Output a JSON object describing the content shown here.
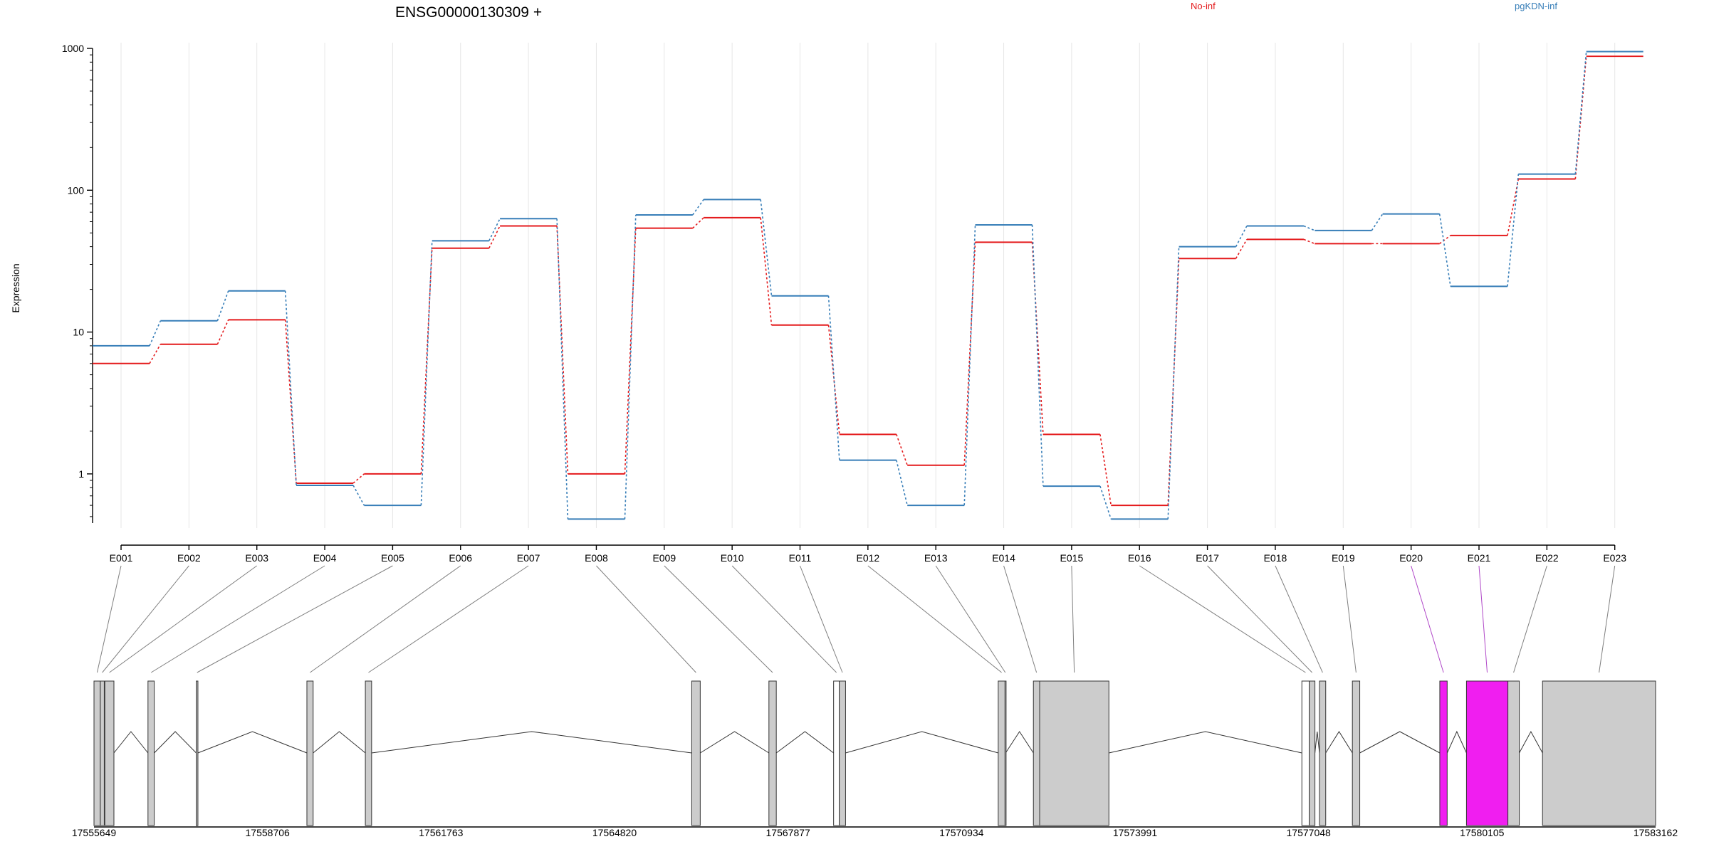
{
  "header": {
    "gene_title": "ENSG00000130309 +",
    "ylabel": "Expression"
  },
  "legend": [
    {
      "label": "No-inf",
      "color": "#e41a1c"
    },
    {
      "label": "pgKDN-inf",
      "color": "#377eb8"
    }
  ],
  "colors": {
    "exon_fill": "#cccccc",
    "exon_highlight": "#f01ef0",
    "connector": "#7f7f7f",
    "connector_highlight": "#b048c8",
    "grid": "#e6e6e6"
  },
  "chart_data": {
    "type": "line",
    "title": "ENSG00000130309 +",
    "ylabel": "Expression",
    "yscale": "log",
    "ylim": [
      0.45,
      1000
    ],
    "yticks": [
      1,
      10,
      100,
      1000
    ],
    "ytick_labels": [
      "1",
      "10",
      "100",
      "1000"
    ],
    "categories": [
      "E001",
      "E002",
      "E003",
      "E004",
      "E005",
      "E006",
      "E007",
      "E008",
      "E009",
      "E010",
      "E011",
      "E012",
      "E013",
      "E014",
      "E015",
      "E016",
      "E017",
      "E018",
      "E019",
      "E020",
      "E021",
      "E022",
      "E023"
    ],
    "series": [
      {
        "name": "No-inf",
        "color": "#e41a1c",
        "values": [
          6.0,
          8.2,
          12.2,
          0.86,
          1.0,
          39,
          56,
          1.0,
          54,
          64,
          11.2,
          1.9,
          1.15,
          43,
          1.9,
          0.6,
          33,
          45,
          42,
          42,
          48,
          120,
          880
        ]
      },
      {
        "name": "pgKDN-inf",
        "color": "#377eb8",
        "values": [
          8.0,
          12.0,
          19.5,
          0.83,
          0.6,
          44,
          63,
          0.48,
          67,
          86,
          18,
          1.25,
          0.6,
          57,
          0.82,
          0.48,
          40,
          56,
          52,
          68,
          21,
          130,
          950
        ]
      }
    ],
    "gene_model": {
      "coordinates": [
        "17555649",
        "17558706",
        "17561763",
        "17564820",
        "17567877",
        "17570934",
        "17573991",
        "17577048",
        "17580105",
        "17583162"
      ],
      "xlim": [
        17555649,
        17583162
      ],
      "exons": [
        {
          "id": "E001",
          "start": 17555649,
          "end": 17555760,
          "highlight": false,
          "boxed": true
        },
        {
          "id": "E002",
          "start": 17555760,
          "end": 17555830,
          "highlight": false,
          "boxed": true
        },
        {
          "id": "E003",
          "start": 17555840,
          "end": 17556000,
          "highlight": false,
          "boxed": true
        },
        {
          "id": "E004",
          "start": 17556600,
          "end": 17556710,
          "highlight": false,
          "boxed": true
        },
        {
          "id": "E005",
          "start": 17557450,
          "end": 17557480,
          "highlight": false,
          "boxed": true
        },
        {
          "id": "E006",
          "start": 17559400,
          "end": 17559510,
          "highlight": false,
          "boxed": true
        },
        {
          "id": "E007",
          "start": 17560430,
          "end": 17560540,
          "highlight": false,
          "boxed": true
        },
        {
          "id": "E008",
          "start": 17566180,
          "end": 17566330,
          "highlight": false,
          "boxed": true
        },
        {
          "id": "E009",
          "start": 17567540,
          "end": 17567670,
          "highlight": false,
          "boxed": true
        },
        {
          "id": "E010",
          "start": 17568680,
          "end": 17568780,
          "highlight": false,
          "boxed": false
        },
        {
          "id": "E011",
          "start": 17568780,
          "end": 17568890,
          "highlight": false,
          "boxed": true
        },
        {
          "id": "E012",
          "start": 17571580,
          "end": 17571700,
          "highlight": false,
          "boxed": true
        },
        {
          "id": "E013",
          "start": 17571700,
          "end": 17571710,
          "highlight": false,
          "boxed": false
        },
        {
          "id": "E014",
          "start": 17572200,
          "end": 17572310,
          "highlight": false,
          "boxed": true
        },
        {
          "id": "E015",
          "start": 17572310,
          "end": 17573530,
          "highlight": false,
          "boxed": true
        },
        {
          "id": "E016",
          "start": 17576930,
          "end": 17577060,
          "highlight": false,
          "boxed": false
        },
        {
          "id": "E017",
          "start": 17577060,
          "end": 17577160,
          "highlight": false,
          "boxed": true
        },
        {
          "id": "E018",
          "start": 17577240,
          "end": 17577350,
          "highlight": false,
          "boxed": true
        },
        {
          "id": "E019",
          "start": 17577820,
          "end": 17577950,
          "highlight": false,
          "boxed": true
        },
        {
          "id": "E020",
          "start": 17579360,
          "end": 17579490,
          "highlight": true,
          "boxed": true
        },
        {
          "id": "E021",
          "start": 17579830,
          "end": 17580560,
          "highlight": true,
          "boxed": true
        },
        {
          "id": "E022",
          "start": 17580560,
          "end": 17580760,
          "highlight": false,
          "boxed": true
        },
        {
          "id": "E023",
          "start": 17581170,
          "end": 17583162,
          "highlight": false,
          "boxed": true
        }
      ],
      "introns": [
        [
          17556000,
          17556600
        ],
        [
          17556710,
          17557450
        ],
        [
          17557480,
          17559400
        ],
        [
          17559510,
          17560430
        ],
        [
          17560540,
          17566180
        ],
        [
          17566330,
          17567540
        ],
        [
          17567670,
          17568680
        ],
        [
          17568890,
          17571580
        ],
        [
          17571710,
          17572200
        ],
        [
          17573530,
          17576930
        ],
        [
          17577160,
          17577240
        ],
        [
          17577350,
          17577820
        ],
        [
          17577950,
          17579360
        ],
        [
          17579490,
          17579830
        ],
        [
          17580760,
          17581170
        ]
      ]
    }
  }
}
